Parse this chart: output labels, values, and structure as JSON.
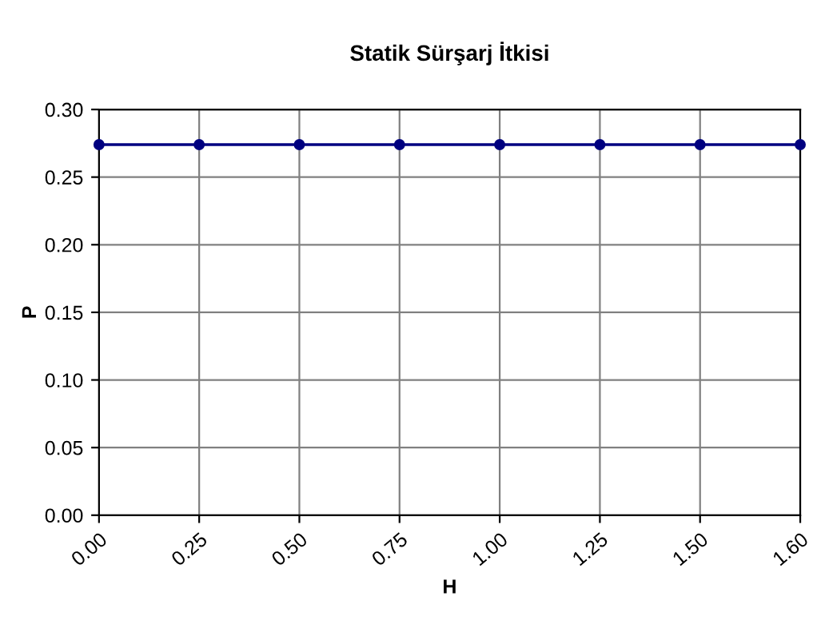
{
  "chart_data": {
    "type": "line",
    "title": "Statik Sürşarj İtkisi",
    "xlabel": "H",
    "ylabel": "P",
    "categories": [
      "0.00",
      "0.25",
      "0.50",
      "0.75",
      "1.00",
      "1.25",
      "1.50",
      "1.60"
    ],
    "series": [
      {
        "color": "#000080",
        "values": [
          0.274,
          0.274,
          0.274,
          0.274,
          0.274,
          0.274,
          0.274,
          0.274
        ]
      }
    ],
    "ylim": [
      0,
      0.3
    ],
    "yticks": [
      {
        "value": 0,
        "label": "0.00"
      },
      {
        "value": 0.05,
        "label": "0.05"
      },
      {
        "value": 0.1,
        "label": "0.10"
      },
      {
        "value": 0.15,
        "label": "0.15"
      },
      {
        "value": 0.2,
        "label": "0.20"
      },
      {
        "value": 0.25,
        "label": "0.25"
      },
      {
        "value": 0.3,
        "label": "0.30"
      }
    ],
    "grid": true,
    "marker": "circle",
    "line_style": "solid"
  }
}
